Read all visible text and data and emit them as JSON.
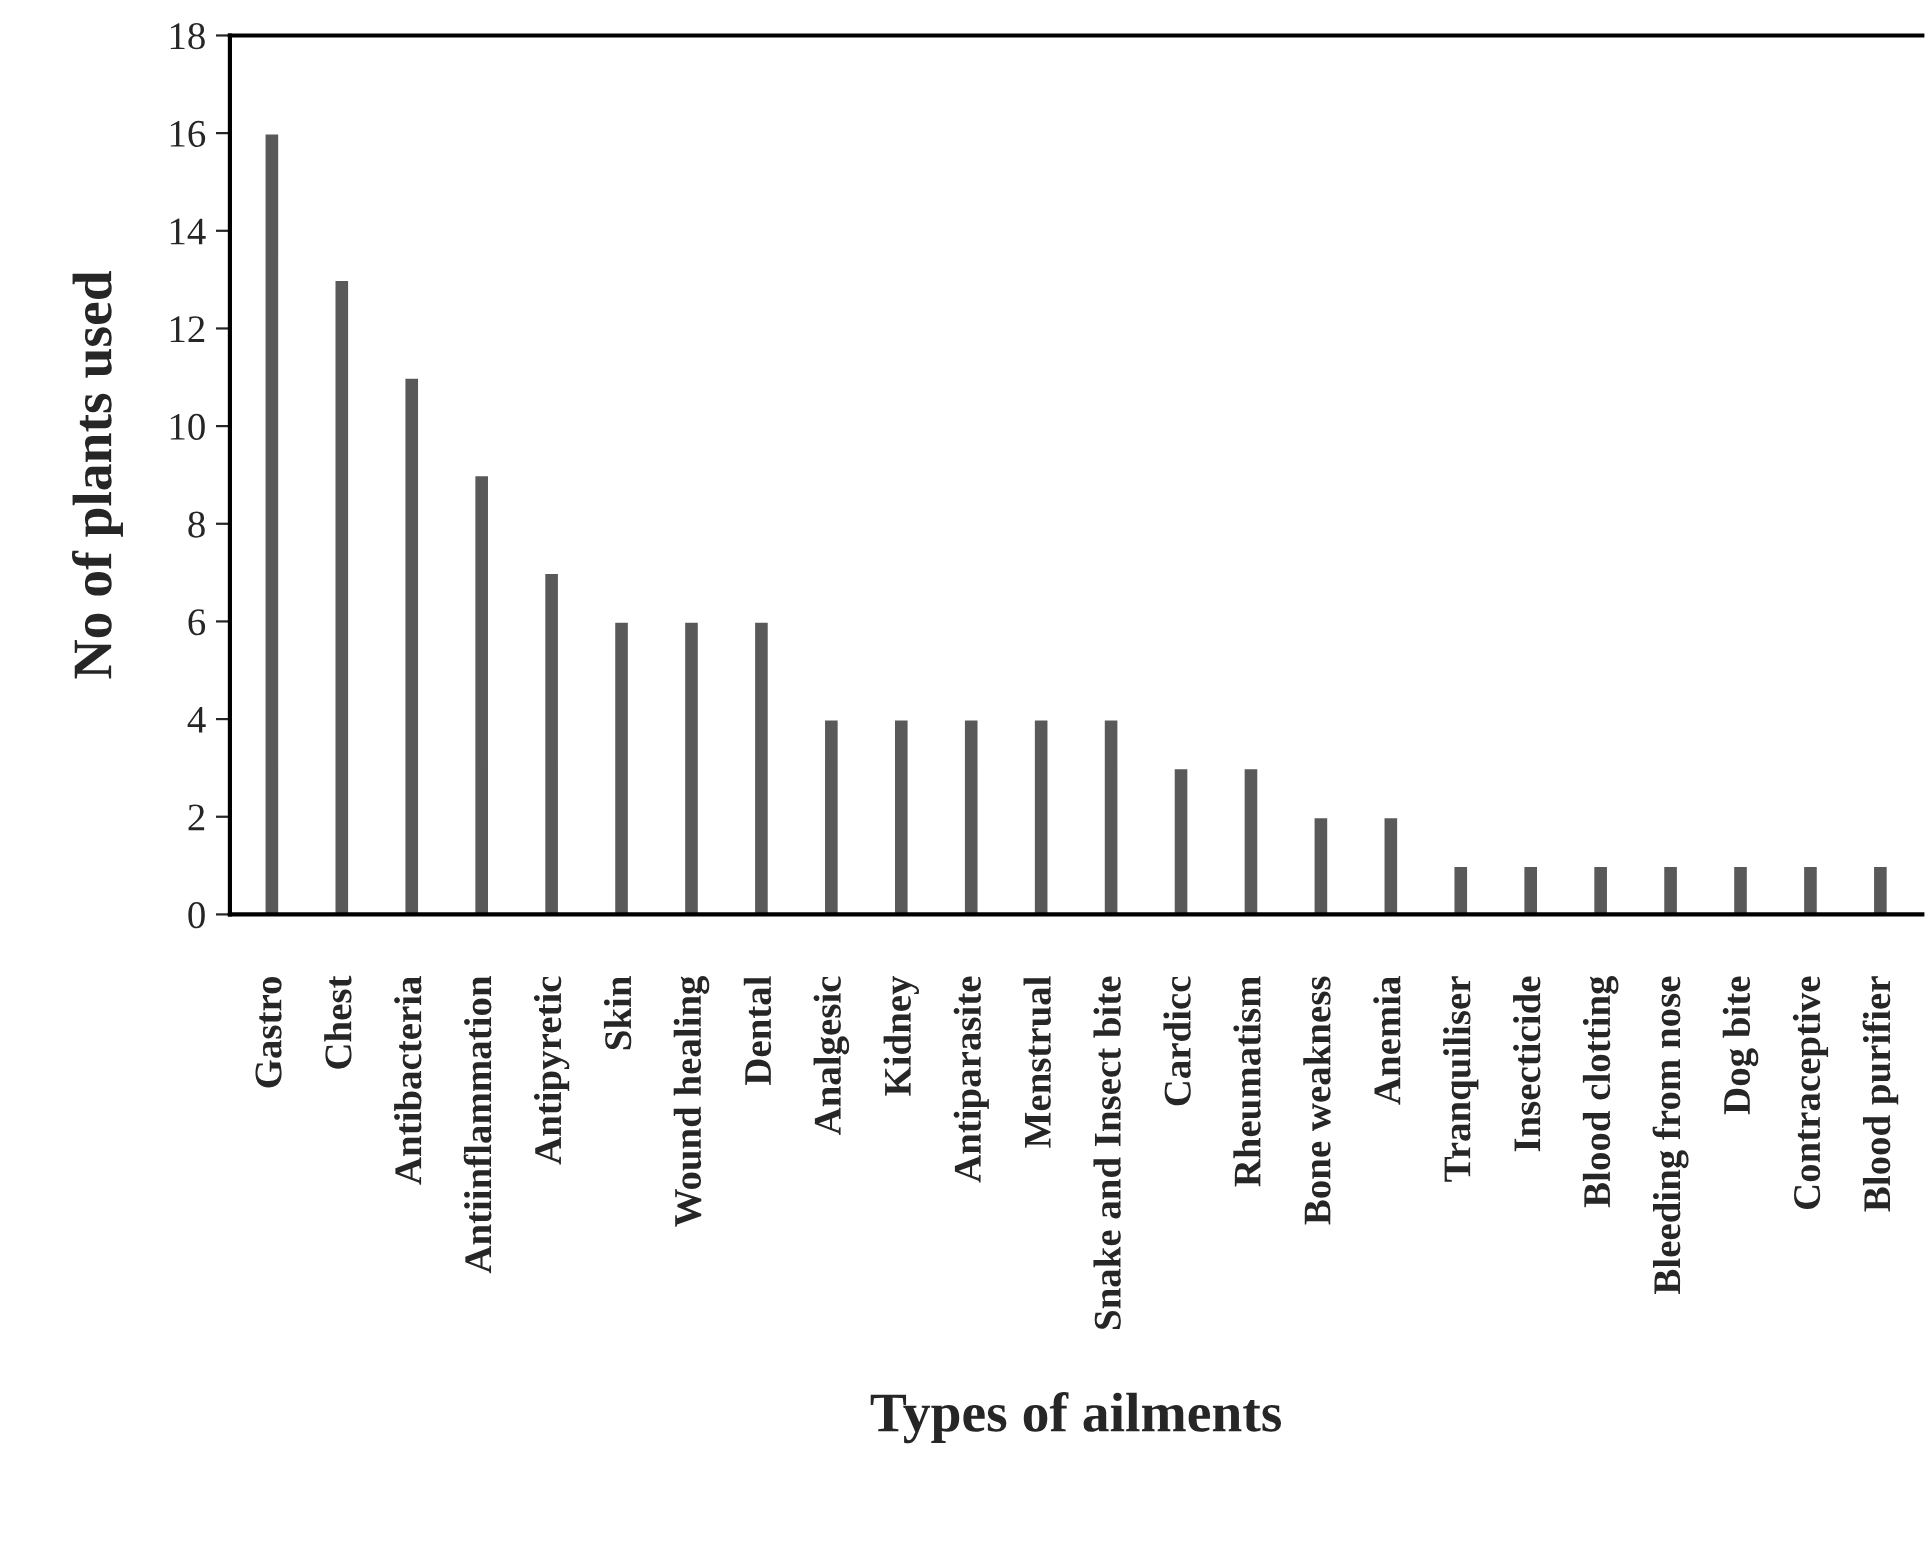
{
  "chart_data": {
    "type": "bar",
    "xlabel": "Types of ailments",
    "ylabel": "No of plants used",
    "categories": [
      "Gastro",
      "Chest",
      "Antibacteria",
      "Antiinflammation",
      "Antipyretic",
      "Skin",
      "Wound healing",
      "Dental",
      "Analgesic",
      "Kidney",
      "Antiparasite",
      "Menstrual",
      "Snake and Insect bite",
      "Cardicc",
      "Rheumatism",
      "Bone weakness",
      "Anemia",
      "Tranquiliser",
      "Insecticide",
      "Blood clotting",
      "Bleeding from nose",
      "Dog bite",
      "Contraceptive",
      "Blood purifier"
    ],
    "values": [
      16,
      13,
      11,
      9,
      7,
      6,
      6,
      6,
      4,
      4,
      4,
      4,
      4,
      3,
      3,
      2,
      2,
      1,
      1,
      1,
      1,
      1,
      1,
      1
    ],
    "color": "#595959",
    "ylim": [
      0,
      18
    ],
    "yticks": [
      0,
      2,
      4,
      6,
      8,
      10,
      12,
      14,
      16,
      18
    ],
    "grid": false,
    "legend": false
  }
}
